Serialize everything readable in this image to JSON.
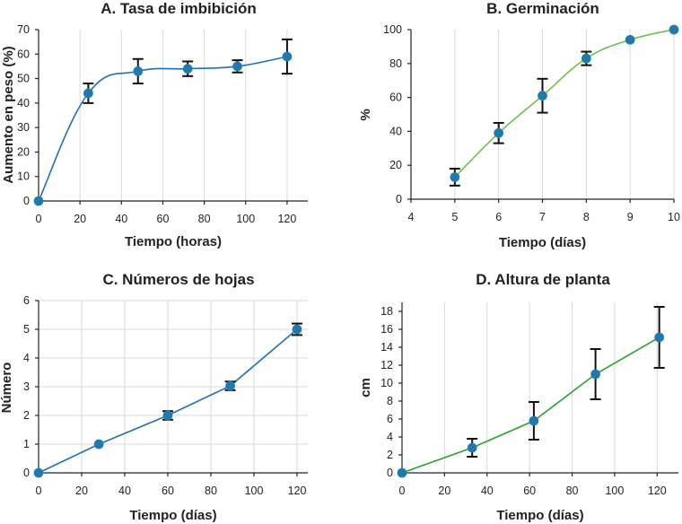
{
  "chart_data": [
    {
      "type": "line",
      "title": "A. Tasa de imbibición",
      "xlabel": "Tiempo (horas)",
      "ylabel": "Aumento en peso (%)",
      "xlim": [
        0,
        130
      ],
      "ylim": [
        0,
        70
      ],
      "xticks": [
        0,
        20,
        40,
        60,
        80,
        100,
        120
      ],
      "yticks": [
        0,
        10,
        20,
        30,
        40,
        50,
        60,
        70
      ],
      "grid": "x",
      "color": "#1f6fb2",
      "marker_color": "#1f77b4",
      "smooth": true,
      "x": [
        0,
        24,
        48,
        72,
        96,
        120
      ],
      "y": [
        0,
        44,
        53,
        54,
        55,
        59
      ],
      "err": [
        0,
        4,
        5,
        3,
        2.5,
        7
      ]
    },
    {
      "type": "line",
      "title": "B. Germinación",
      "xlabel": "Tiempo (días)",
      "ylabel": "%",
      "xlim": [
        4,
        10
      ],
      "ylim": [
        0,
        100
      ],
      "xticks": [
        4,
        5,
        6,
        7,
        8,
        9,
        10
      ],
      "yticks": [
        0,
        20,
        40,
        60,
        80,
        100
      ],
      "grid": "x",
      "color": "#6cc04a",
      "marker_color": "#1f77b4",
      "smooth": true,
      "x": [
        5,
        6,
        7,
        8,
        9,
        10
      ],
      "y": [
        13,
        39,
        61,
        83,
        94,
        100
      ],
      "err": [
        5,
        6,
        10,
        4,
        0,
        0
      ]
    },
    {
      "type": "line",
      "title": "C. Números de hojas",
      "xlabel": "Tiempo (días)",
      "ylabel": "Número",
      "xlim": [
        0,
        125
      ],
      "ylim": [
        0,
        6
      ],
      "xticks": [
        0,
        20,
        40,
        60,
        80,
        100,
        120
      ],
      "yticks": [
        0,
        1,
        2,
        3,
        4,
        5,
        6
      ],
      "grid": "both",
      "color": "#1f6fb2",
      "marker_color": "#1f77b4",
      "smooth": false,
      "x": [
        0,
        28,
        60,
        89,
        120
      ],
      "y": [
        0,
        1,
        2,
        3.03,
        5
      ],
      "err": [
        0,
        0,
        0.15,
        0.15,
        0.2
      ]
    },
    {
      "type": "line",
      "title": "D. Altura de planta",
      "xlabel": "Tiempo (días)",
      "ylabel": "cm",
      "xlim": [
        0,
        130
      ],
      "ylim": [
        0,
        19
      ],
      "xticks": [
        0,
        20,
        40,
        60,
        80,
        100,
        120
      ],
      "yticks": [
        0,
        2,
        4,
        6,
        8,
        10,
        12,
        14,
        16,
        18
      ],
      "grid": "x",
      "color": "#2ca02c",
      "marker_color": "#1f77b4",
      "smooth": false,
      "x": [
        0,
        33,
        62,
        91,
        121
      ],
      "y": [
        0,
        2.8,
        5.8,
        11,
        15.1
      ],
      "err": [
        0,
        1,
        2.1,
        2.8,
        3.4
      ]
    }
  ]
}
